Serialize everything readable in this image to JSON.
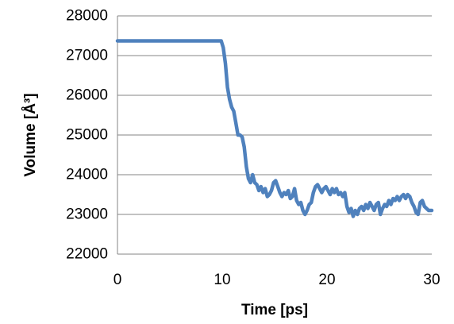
{
  "chart_data": {
    "type": "line",
    "title": "",
    "xlabel": "Time [ps]",
    "ylabel": "Volume [Å³]",
    "xlim": [
      0,
      30
    ],
    "ylim": [
      22000,
      28000
    ],
    "x_ticks": [
      "0",
      "10",
      "20",
      "30"
    ],
    "y_ticks": [
      "22000",
      "23000",
      "24000",
      "25000",
      "26000",
      "27000",
      "28000"
    ],
    "grid": "horizontal",
    "legend": "none",
    "series": [
      {
        "color": "#4f81bd",
        "points": [
          [
            0,
            27370
          ],
          [
            2,
            27370
          ],
          [
            4,
            27370
          ],
          [
            6,
            27370
          ],
          [
            8,
            27370
          ],
          [
            9.9,
            27370
          ],
          [
            10.1,
            27200
          ],
          [
            10.3,
            26800
          ],
          [
            10.5,
            26200
          ],
          [
            10.7,
            25900
          ],
          [
            10.9,
            25700
          ],
          [
            11.1,
            25600
          ],
          [
            11.3,
            25300
          ],
          [
            11.5,
            25000
          ],
          [
            11.7,
            25000
          ],
          [
            11.9,
            24950
          ],
          [
            12.1,
            24700
          ],
          [
            12.3,
            24200
          ],
          [
            12.5,
            23900
          ],
          [
            12.7,
            23800
          ],
          [
            12.9,
            24000
          ],
          [
            13.1,
            23800
          ],
          [
            13.3,
            23750
          ],
          [
            13.5,
            23600
          ],
          [
            13.7,
            23700
          ],
          [
            13.9,
            23550
          ],
          [
            14.1,
            23650
          ],
          [
            14.3,
            23450
          ],
          [
            14.5,
            23500
          ],
          [
            14.7,
            23600
          ],
          [
            14.9,
            23800
          ],
          [
            15.1,
            23850
          ],
          [
            15.3,
            23700
          ],
          [
            15.5,
            23550
          ],
          [
            15.7,
            23450
          ],
          [
            15.9,
            23550
          ],
          [
            16.1,
            23500
          ],
          [
            16.3,
            23600
          ],
          [
            16.5,
            23400
          ],
          [
            16.7,
            23450
          ],
          [
            16.9,
            23650
          ],
          [
            17.1,
            23350
          ],
          [
            17.3,
            23250
          ],
          [
            17.5,
            23300
          ],
          [
            17.7,
            23100
          ],
          [
            17.9,
            23000
          ],
          [
            18.1,
            23100
          ],
          [
            18.3,
            23250
          ],
          [
            18.5,
            23300
          ],
          [
            18.7,
            23550
          ],
          [
            18.9,
            23700
          ],
          [
            19.1,
            23750
          ],
          [
            19.3,
            23650
          ],
          [
            19.5,
            23550
          ],
          [
            19.7,
            23650
          ],
          [
            19.9,
            23700
          ],
          [
            20.1,
            23600
          ],
          [
            20.3,
            23500
          ],
          [
            20.5,
            23650
          ],
          [
            20.7,
            23550
          ],
          [
            20.9,
            23650
          ],
          [
            21.1,
            23500
          ],
          [
            21.3,
            23550
          ],
          [
            21.5,
            23450
          ],
          [
            21.7,
            23550
          ],
          [
            21.9,
            23200
          ],
          [
            22.1,
            23050
          ],
          [
            22.3,
            23150
          ],
          [
            22.5,
            22950
          ],
          [
            22.7,
            23100
          ],
          [
            22.9,
            23000
          ],
          [
            23.1,
            23150
          ],
          [
            23.3,
            23200
          ],
          [
            23.5,
            23100
          ],
          [
            23.7,
            23250
          ],
          [
            23.9,
            23150
          ],
          [
            24.1,
            23300
          ],
          [
            24.3,
            23200
          ],
          [
            24.5,
            23100
          ],
          [
            24.7,
            23250
          ],
          [
            24.9,
            23300
          ],
          [
            25.1,
            23000
          ],
          [
            25.3,
            23150
          ],
          [
            25.5,
            23250
          ],
          [
            25.7,
            23200
          ],
          [
            25.9,
            23350
          ],
          [
            26.1,
            23250
          ],
          [
            26.3,
            23400
          ],
          [
            26.5,
            23350
          ],
          [
            26.7,
            23450
          ],
          [
            26.9,
            23350
          ],
          [
            27.1,
            23450
          ],
          [
            27.3,
            23500
          ],
          [
            27.5,
            23400
          ],
          [
            27.7,
            23500
          ],
          [
            27.9,
            23450
          ],
          [
            28.1,
            23300
          ],
          [
            28.3,
            23200
          ],
          [
            28.5,
            23050
          ],
          [
            28.7,
            23000
          ],
          [
            28.9,
            23300
          ],
          [
            29.1,
            23350
          ],
          [
            29.3,
            23200
          ],
          [
            29.5,
            23150
          ],
          [
            29.7,
            23100
          ],
          [
            30,
            23100
          ]
        ]
      }
    ]
  }
}
